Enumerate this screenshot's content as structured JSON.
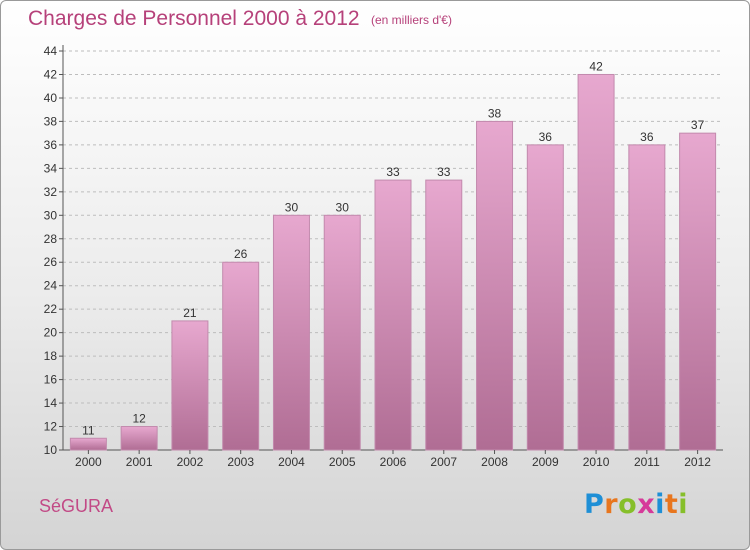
{
  "header": {
    "title": "Charges de Personnel 2000 à 2012",
    "subtitle": "(en milliers d'€)"
  },
  "footer": {
    "commune": "SéGURA",
    "logo_letters": [
      {
        "char": "P",
        "color": "#1e8fd6"
      },
      {
        "char": "r",
        "color": "#e8761e"
      },
      {
        "char": "o",
        "color": "#86bf2a"
      },
      {
        "char": "x",
        "color": "#d63a9a"
      },
      {
        "char": "i",
        "color": "#1e8fd6"
      },
      {
        "char": "t",
        "color": "#e8761e"
      },
      {
        "char": "i",
        "color": "#86bf2a"
      }
    ]
  },
  "colors": {
    "bar_top": "#e7a8cf",
    "bar_bottom": "#b06d94",
    "bar_stroke": "#c28aad",
    "text_accent": "#b6417a"
  },
  "chart_data": {
    "type": "bar",
    "categories": [
      "2000",
      "2001",
      "2002",
      "2003",
      "2004",
      "2005",
      "2006",
      "2007",
      "2008",
      "2009",
      "2010",
      "2011",
      "2012"
    ],
    "values": [
      11,
      12,
      21,
      26,
      30,
      30,
      33,
      33,
      38,
      36,
      42,
      36,
      37
    ],
    "data_labels": [
      "11",
      "12",
      "21",
      "26",
      "30",
      "30",
      "33",
      "33",
      "38",
      "36",
      "42",
      "36",
      "37"
    ],
    "yticks": [
      "10",
      "12",
      "14",
      "16",
      "18",
      "20",
      "22",
      "24",
      "26",
      "28",
      "30",
      "32",
      "34",
      "36",
      "38",
      "40",
      "42",
      "44"
    ],
    "ylim": [
      10,
      44
    ],
    "grid": true
  }
}
